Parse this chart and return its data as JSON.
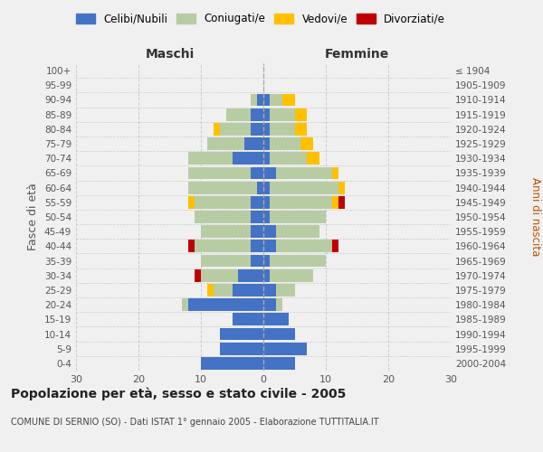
{
  "age_groups": [
    "0-4",
    "5-9",
    "10-14",
    "15-19",
    "20-24",
    "25-29",
    "30-34",
    "35-39",
    "40-44",
    "45-49",
    "50-54",
    "55-59",
    "60-64",
    "65-69",
    "70-74",
    "75-79",
    "80-84",
    "85-89",
    "90-94",
    "95-99",
    "100+"
  ],
  "birth_years": [
    "2000-2004",
    "1995-1999",
    "1990-1994",
    "1985-1989",
    "1980-1984",
    "1975-1979",
    "1970-1974",
    "1965-1969",
    "1960-1964",
    "1955-1959",
    "1950-1954",
    "1945-1949",
    "1940-1944",
    "1935-1939",
    "1930-1934",
    "1925-1929",
    "1920-1924",
    "1915-1919",
    "1910-1914",
    "1905-1909",
    "≤ 1904"
  ],
  "males": {
    "celibi": [
      10,
      7,
      7,
      5,
      12,
      5,
      4,
      2,
      2,
      2,
      2,
      2,
      1,
      2,
      5,
      3,
      2,
      2,
      1,
      0,
      0
    ],
    "coniugati": [
      0,
      0,
      0,
      0,
      1,
      3,
      6,
      8,
      9,
      8,
      9,
      9,
      11,
      10,
      7,
      6,
      5,
      4,
      1,
      0,
      0
    ],
    "vedovi": [
      0,
      0,
      0,
      0,
      0,
      1,
      0,
      0,
      0,
      0,
      0,
      1,
      0,
      0,
      0,
      0,
      1,
      0,
      0,
      0,
      0
    ],
    "divorziati": [
      0,
      0,
      0,
      0,
      0,
      0,
      1,
      0,
      1,
      0,
      0,
      0,
      0,
      0,
      0,
      0,
      0,
      0,
      0,
      0,
      0
    ]
  },
  "females": {
    "nubili": [
      5,
      7,
      5,
      4,
      2,
      2,
      1,
      1,
      2,
      2,
      1,
      1,
      1,
      2,
      1,
      1,
      1,
      1,
      1,
      0,
      0
    ],
    "coniugate": [
      0,
      0,
      0,
      0,
      1,
      3,
      7,
      9,
      9,
      7,
      9,
      10,
      11,
      9,
      6,
      5,
      4,
      4,
      2,
      0,
      0
    ],
    "vedove": [
      0,
      0,
      0,
      0,
      0,
      0,
      0,
      0,
      0,
      0,
      0,
      1,
      1,
      1,
      2,
      2,
      2,
      2,
      2,
      0,
      0
    ],
    "divorziate": [
      0,
      0,
      0,
      0,
      0,
      0,
      0,
      0,
      1,
      0,
      0,
      1,
      0,
      0,
      0,
      0,
      0,
      0,
      0,
      0,
      0
    ]
  },
  "colors": {
    "celibi": "#4472c4",
    "coniugati": "#b8cca4",
    "vedovi": "#ffc000",
    "divorziati": "#c00000"
  },
  "title": "Popolazione per età, sesso e stato civile - 2005",
  "subtitle": "COMUNE DI SERNIO (SO) - Dati ISTAT 1° gennaio 2005 - Elaborazione TUTTITALIA.IT",
  "xlabel_left": "Maschi",
  "xlabel_right": "Femmine",
  "ylabel_left": "Fasce di età",
  "ylabel_right": "Anni di nascita",
  "xlim": 30,
  "background_color": "#f0f0f0"
}
